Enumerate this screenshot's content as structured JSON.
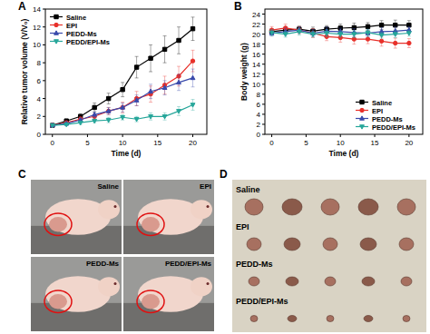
{
  "chart_data": [
    {
      "type": "line",
      "annotations": [
        "A"
      ],
      "x_label": "Time (d)",
      "y_label": "Relative tumor volume (V/V₀)",
      "x": [
        0,
        2,
        4,
        6,
        8,
        10,
        12,
        14,
        16,
        18,
        20
      ],
      "xlim": [
        -1,
        22
      ],
      "xticks": [
        0,
        5,
        10,
        15,
        20
      ],
      "ylim": [
        0,
        14
      ],
      "yticks": [
        0,
        2,
        4,
        6,
        8,
        10,
        12,
        14
      ],
      "legend": "upper left",
      "grid": false,
      "series": [
        {
          "name": "Saline",
          "color": "#000000",
          "marker": "square",
          "values": [
            1,
            1.5,
            2,
            3,
            4,
            5,
            7.5,
            8.5,
            9.5,
            10.5,
            11.8
          ],
          "errors": [
            0,
            0.2,
            0.3,
            0.5,
            0.6,
            0.8,
            1.2,
            1.5,
            1.5,
            1.5,
            1.3
          ]
        },
        {
          "name": "EPI",
          "color": "#e8302a",
          "marker": "circle",
          "values": [
            1,
            1.3,
            1.7,
            2,
            2.6,
            3,
            4,
            4.5,
            5.5,
            6.5,
            8.2
          ],
          "errors": [
            0,
            0.2,
            0.3,
            0.3,
            0.4,
            0.6,
            0.8,
            0.9,
            1,
            1.1,
            1.2
          ]
        },
        {
          "name": "PEDD-Ms",
          "color": "#3949ab",
          "marker": "triangle",
          "values": [
            1,
            1.2,
            1.6,
            2.2,
            2.6,
            3,
            3.8,
            4.8,
            5.2,
            5.8,
            6.3
          ],
          "errors": [
            0,
            0.2,
            0.2,
            0.3,
            0.4,
            0.5,
            0.6,
            0.8,
            0.8,
            0.9,
            1
          ]
        },
        {
          "name": "PEDD/EPI-Ms",
          "color": "#26a69a",
          "marker": "triangle-down",
          "values": [
            1,
            1.1,
            1.3,
            1.5,
            1.6,
            1.9,
            1.7,
            2,
            2,
            2.6,
            3.3
          ],
          "errors": [
            0,
            0.1,
            0.2,
            0.2,
            0.3,
            0.3,
            0.3,
            0.4,
            0.4,
            0.5,
            0.6
          ]
        }
      ]
    },
    {
      "type": "line",
      "annotations": [
        "B"
      ],
      "x_label": "Time (d)",
      "y_label": "Body weight (g)",
      "x": [
        0,
        2,
        4,
        6,
        8,
        10,
        12,
        14,
        16,
        18,
        20
      ],
      "xlim": [
        -1,
        22
      ],
      "xticks": [
        0,
        5,
        10,
        15,
        20
      ],
      "ylim": [
        0,
        25
      ],
      "yticks": [
        0,
        2,
        4,
        6,
        8,
        10,
        12,
        14,
        16,
        18,
        20,
        22,
        24
      ],
      "legend": "lower right",
      "grid": false,
      "series": [
        {
          "name": "Saline",
          "color": "#000000",
          "marker": "square",
          "values": [
            20.5,
            20.8,
            21,
            20.6,
            21,
            21.2,
            21.3,
            21.5,
            21.8,
            21.8,
            21.8
          ],
          "errors": [
            0.6,
            0.7,
            0.6,
            0.8,
            0.7,
            0.8,
            0.9,
            0.8,
            0.9,
            1,
            0.9
          ]
        },
        {
          "name": "EPI",
          "color": "#e8302a",
          "marker": "circle",
          "values": [
            20.8,
            21.2,
            20.8,
            20.2,
            19.5,
            19.3,
            19,
            19,
            18.6,
            18.2,
            18.2
          ],
          "errors": [
            0.7,
            0.8,
            0.7,
            0.9,
            0.8,
            0.9,
            1,
            0.9,
            1,
            1,
            0.9
          ]
        },
        {
          "name": "PEDD-Ms",
          "color": "#3949ab",
          "marker": "triangle",
          "values": [
            20.2,
            20.5,
            20.8,
            20.2,
            20.6,
            20.5,
            20.3,
            20.2,
            20.5,
            20.6,
            20.8
          ],
          "errors": [
            0.6,
            0.7,
            0.6,
            0.7,
            0.8,
            0.7,
            0.8,
            0.7,
            0.8,
            0.8,
            0.7
          ]
        },
        {
          "name": "PEDD/EPI-Ms",
          "color": "#26a69a",
          "marker": "triangle-down",
          "values": [
            20.3,
            20,
            20.5,
            20,
            20.2,
            20,
            20,
            20.3,
            19.8,
            20,
            20.2
          ],
          "errors": [
            0.6,
            0.6,
            0.7,
            0.6,
            0.7,
            0.6,
            0.7,
            0.7,
            0.6,
            0.7,
            0.6
          ]
        }
      ]
    }
  ],
  "panel_c": {
    "letter": "C",
    "labels": [
      "Saline",
      "EPI",
      "PEDD-Ms",
      "PEDD/EPI-Ms"
    ]
  },
  "panel_d": {
    "letter": "D",
    "labels": [
      "Saline",
      "EPI",
      "PEDD-Ms",
      "PEDD/EPI-Ms"
    ]
  }
}
